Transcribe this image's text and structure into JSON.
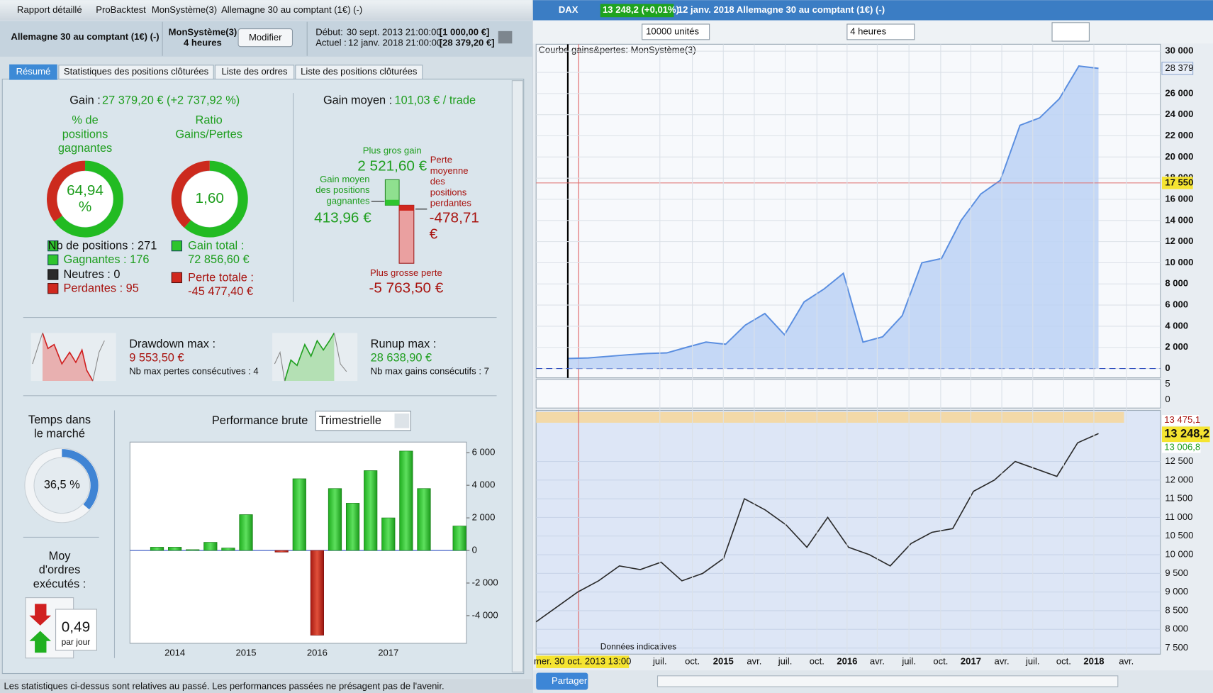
{
  "left": {
    "window_tabs": [
      "Rapport détaillé",
      "ProBacktest",
      "MonSystème(3)",
      "Allemagne 30 au comptant (1€) (-)"
    ],
    "header": {
      "instrument": "Allemagne 30 au comptant (1€) (-)",
      "system": "MonSystème(3)",
      "timeframe": "4 heures",
      "button": "Modifier",
      "start_label": "Début:",
      "start_date": "30 sept. 2013 21:00:00",
      "start_capital": "[1 000,00 €]",
      "current_label": "Actuel :",
      "current_date": "12 janv. 2018 21:00:00",
      "current_capital": "[28 379,20 €]"
    },
    "tabs": [
      "Résumé",
      "Statistiques des positions clôturées",
      "Liste des ordres",
      "Liste des positions clôturées"
    ],
    "summary": {
      "gain_label": "Gain :",
      "gain_value": "27 379,20 € (+2 737,92 %)",
      "win_title": [
        "% de",
        "positions",
        "gagnantes"
      ],
      "win_rate": {
        "value": 64.94,
        "label": "64,94",
        "unit": "%"
      },
      "ratio_title": [
        "Ratio",
        "Gains/Pertes"
      ],
      "ratio": "1,60",
      "positions": "Nb de positions : 271",
      "winners": "Gagnantes : 176",
      "neutral": "Neutres : 0",
      "losers": "Perdantes : 95",
      "gain_total_label": "Gain total :",
      "gain_total": {
        "value": 72856.6,
        "label": "72 856,60 €"
      },
      "loss_total_label": "Perte totale :",
      "loss_total": {
        "value": -45477.4,
        "label": "-45 477,40 €"
      },
      "avg_gain_label": "Gain moyen :",
      "avg_gain": "101,03 € / trade",
      "max_gain_label": "Plus gros gain",
      "max_gain": "2 521,60 €",
      "avg_win_label": [
        "Gain moyen",
        "des positions",
        "gagnantes"
      ],
      "avg_win": "413,96 €",
      "avg_loss_label": [
        "Perte",
        "moyenne",
        "des",
        "positions",
        "perdantes"
      ],
      "avg_loss": [
        "-478,71",
        "€"
      ],
      "max_loss_label": "Plus grosse perte",
      "max_loss": "-5 763,50 €",
      "drawdown_label": "Drawdown max :",
      "drawdown": "9 553,50 €",
      "max_losses": "Nb max pertes consécutives : 4",
      "runup_label": "Runup max :",
      "runup": "28 638,90 €",
      "max_gains": "Nb max gains consécutifs : 7",
      "market_time_title": [
        "Temps dans",
        "le marché"
      ],
      "market_time": {
        "value": 36.5,
        "label": "36,5 %"
      },
      "orders_title": [
        "Moy",
        "d'ordres",
        "exécutés :"
      ],
      "orders": "0,49",
      "orders_unit": "par jour"
    },
    "performance": {
      "type": "bar",
      "title": "Performance brute",
      "period": "Trimestrielle",
      "categories": [
        null,
        "2014",
        null,
        null,
        null,
        "2015",
        null,
        null,
        null,
        "2016",
        null,
        null,
        null,
        "2017",
        null,
        null,
        null,
        null
      ],
      "values": [
        200,
        200,
        50,
        500,
        150,
        2200,
        0,
        -100,
        4400,
        -5200,
        3800,
        2900,
        4900,
        2000,
        6100,
        3800,
        0,
        1500
      ],
      "color": "#2dbf2d",
      "negative_color": "#c8281e",
      "ylim": [
        -5700,
        6650
      ],
      "yticks": [
        {
          "value": 6000,
          "label": "6 000"
        },
        {
          "value": 4000,
          "label": "4 000"
        },
        {
          "value": 2000,
          "label": "2 000"
        },
        0,
        {
          "value": -2000,
          "label": "-2 000"
        },
        {
          "value": -4000,
          "label": "-4 000"
        }
      ]
    },
    "footer": "Les statistiques ci-dessus sont relatives au passé. Les performances passées ne présagent pas de l'avenir."
  },
  "right": {
    "symbol": "DAX",
    "quote": "13 248,2 (+0,01%)",
    "title": "12 janv. 2018 Allemagne 30 au comptant (1€) (-)",
    "quantity": "10000 unités",
    "timeframe": "4 heures",
    "equity": {
      "type": "area",
      "title": "Courbe gains&pertes: MonSystème(3)",
      "values": [
        950,
        1000,
        1150,
        1300,
        1420,
        1480,
        2000,
        2500,
        2300,
        4100,
        5200,
        3200,
        6300,
        7500,
        9000,
        2500,
        3000,
        5000,
        10000,
        10400,
        14000,
        16500,
        17800,
        23000,
        23700,
        25500,
        28600,
        28379
      ],
      "color": "#5a8ee0",
      "ylim": [
        -660,
        30440
      ],
      "yticks": [
        0,
        {
          "value": 2000,
          "label": "2 000"
        },
        {
          "value": 4000,
          "label": "4 000"
        },
        {
          "value": 6000,
          "label": "6 000"
        },
        {
          "value": 8000,
          "label": "8 000"
        },
        {
          "value": 10000,
          "label": "10 000"
        },
        {
          "value": 12000,
          "label": "12 000"
        },
        {
          "value": 14000,
          "label": "14 000"
        },
        {
          "value": 16000,
          "label": "16 000"
        },
        {
          "value": 18000,
          "label": "18 000"
        },
        {
          "value": 20000,
          "label": "20 000"
        },
        {
          "value": 22000,
          "label": "22 000"
        },
        {
          "value": 24000,
          "label": "24 000"
        },
        {
          "value": 26000,
          "label": "26 000"
        },
        {
          "value": 28000,
          "label": "28 000"
        },
        {
          "value": 30000,
          "label": "30 000"
        }
      ],
      "last_label": "28 379",
      "level": {
        "value": 17550,
        "label": "17 550"
      }
    },
    "volume": {
      "ylim": [
        -2.7,
        6.5
      ],
      "yticks": [
        5,
        0
      ]
    },
    "price": {
      "type": "line",
      "values": [
        8200,
        8600,
        9000,
        9300,
        9700,
        9600,
        9800,
        9300,
        9500,
        9900,
        11500,
        11200,
        10800,
        10200,
        11000,
        10200,
        10000,
        9700,
        10300,
        10600,
        10700,
        11700,
        12000,
        12500,
        12300,
        12100,
        13000,
        13248
      ],
      "color": "#2a2a2a",
      "ylim": [
        7334,
        13828
      ],
      "yticks": [
        {
          "value": 7500,
          "label": "7 500"
        },
        {
          "value": 8000,
          "label": "8 000"
        },
        {
          "value": 8500,
          "label": "8 500"
        },
        {
          "value": 9000,
          "label": "9 000"
        },
        {
          "value": 9500,
          "label": "9 500"
        },
        {
          "value": 10000,
          "label": "10 000"
        },
        {
          "value": 10500,
          "label": "10 500"
        },
        {
          "value": 11000,
          "label": "11 000"
        },
        {
          "value": 11500,
          "label": "11 500"
        },
        {
          "value": 12000,
          "label": "12 000"
        },
        {
          "value": 12500,
          "label": "12 500"
        }
      ],
      "high": "13 475,1",
      "last": "13 248,2",
      "low": "13 006,8",
      "source": "Données indicatives"
    },
    "x_labels": [
      "mer. 30 oct. 2013 13:00",
      "juil.",
      "oct.",
      "2015",
      "avr.",
      "juil.",
      "oct.",
      "2016",
      "avr.",
      "juil.",
      "oct.",
      "2017",
      "avr.",
      "juil.",
      "oct.",
      "2018",
      "avr."
    ],
    "share": "Partager"
  }
}
